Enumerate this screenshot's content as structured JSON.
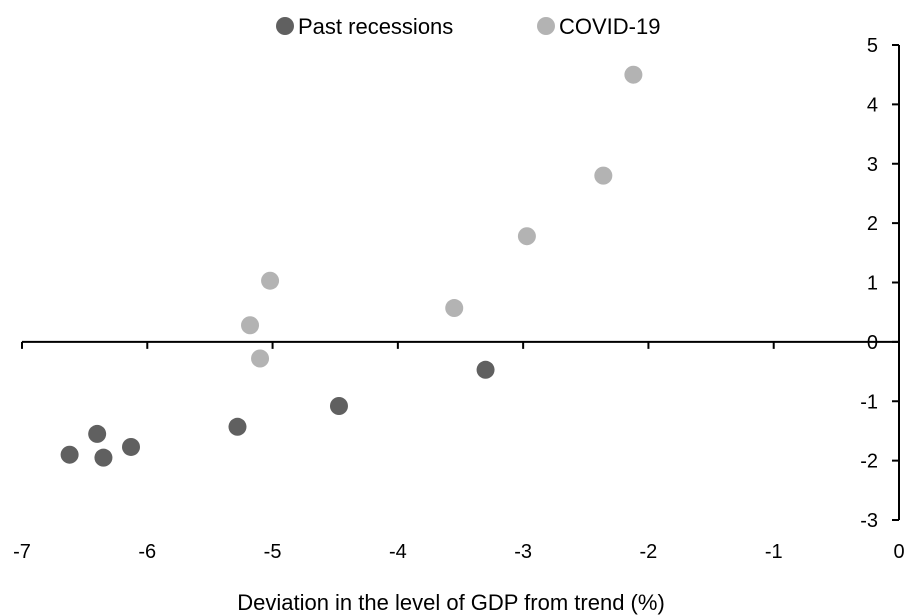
{
  "chart_data": {
    "type": "scatter",
    "title": "",
    "xlabel": "Deviation in the level of GDP from trend (%)",
    "ylabel": "",
    "xlim": [
      -7,
      0
    ],
    "ylim": [
      -3,
      5
    ],
    "x_ticks": [
      "-7",
      "-6",
      "-5",
      "-4",
      "-3",
      "-2",
      "-1",
      "0"
    ],
    "y_ticks": [
      "5",
      "4",
      "3",
      "2",
      "1",
      "0",
      "-1",
      "-2",
      "-3"
    ],
    "legend_position": "top-center",
    "grid": false,
    "series": [
      {
        "name": "Past recessions",
        "color": "#606060",
        "points": [
          {
            "x": -6.62,
            "y": -1.9
          },
          {
            "x": -6.4,
            "y": -1.55
          },
          {
            "x": -6.35,
            "y": -1.95
          },
          {
            "x": -6.13,
            "y": -1.77
          },
          {
            "x": -5.28,
            "y": -1.43
          },
          {
            "x": -4.47,
            "y": -1.08
          },
          {
            "x": -3.3,
            "y": -0.47
          }
        ]
      },
      {
        "name": "COVID-19",
        "color": "#b3b3b3",
        "points": [
          {
            "x": -5.18,
            "y": 0.28
          },
          {
            "x": -5.02,
            "y": 1.03
          },
          {
            "x": -5.1,
            "y": -0.28
          },
          {
            "x": -3.55,
            "y": 0.57
          },
          {
            "x": -2.97,
            "y": 1.78
          },
          {
            "x": -2.36,
            "y": 2.8
          },
          {
            "x": -2.12,
            "y": 4.5
          }
        ]
      }
    ]
  }
}
